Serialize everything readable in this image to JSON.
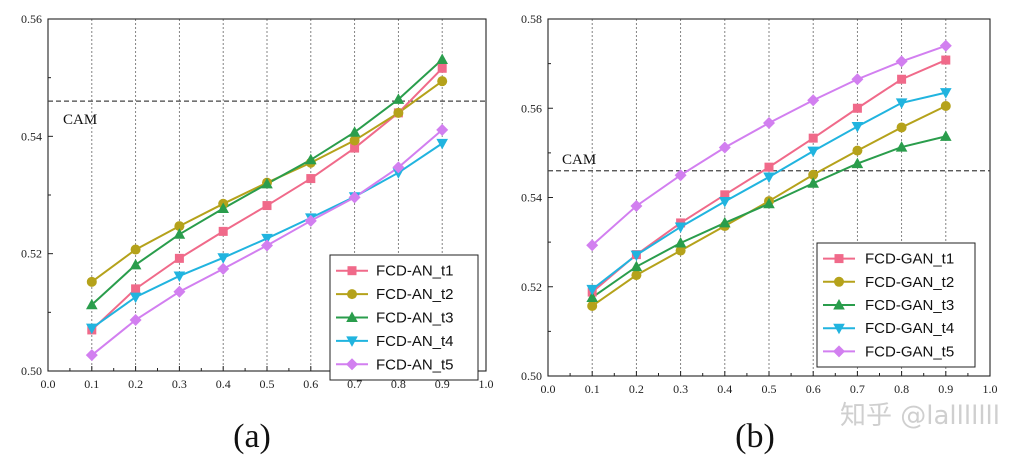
{
  "chart_data": [
    {
      "type": "line",
      "caption": "(a)",
      "x": [
        0.1,
        0.2,
        0.3,
        0.4,
        0.5,
        0.6,
        0.7,
        0.8,
        0.9
      ],
      "xlim": [
        0.0,
        1.0
      ],
      "xticks": [
        "0.0",
        "0.1",
        "0.2",
        "0.3",
        "0.4",
        "0.5",
        "0.6",
        "0.7",
        "0.8",
        "0.9",
        "1.0"
      ],
      "ylim": [
        0.5,
        0.56
      ],
      "yticks": [
        "0.50",
        "0.52",
        "0.54",
        "0.56"
      ],
      "grid": "vertical dotted",
      "reference_line": {
        "label": "CAM",
        "value": 0.546
      },
      "legend_position": "bottom-right",
      "series": [
        {
          "name": "FCD-AN_t1",
          "color": "#f06a8a",
          "marker": "square",
          "values": [
            0.507,
            0.514,
            0.5192,
            0.5238,
            0.5282,
            0.5328,
            0.538,
            0.544,
            0.5516
          ]
        },
        {
          "name": "FCD-AN_t2",
          "color": "#b5a21b",
          "marker": "circle",
          "values": [
            0.5152,
            0.5207,
            0.5247,
            0.5285,
            0.5321,
            0.5355,
            0.5393,
            0.544,
            0.5494
          ]
        },
        {
          "name": "FCD-AN_t3",
          "color": "#2a9d4c",
          "marker": "triangle-up",
          "values": [
            0.5113,
            0.5181,
            0.5233,
            0.5277,
            0.5319,
            0.536,
            0.5407,
            0.5463,
            0.5531
          ]
        },
        {
          "name": "FCD-AN_t4",
          "color": "#21b4df",
          "marker": "triangle-down",
          "values": [
            0.5073,
            0.5126,
            0.5162,
            0.5193,
            0.5226,
            0.5261,
            0.5297,
            0.5338,
            0.5388
          ]
        },
        {
          "name": "FCD-AN_t5",
          "color": "#d27ff0",
          "marker": "diamond",
          "values": [
            0.5027,
            0.5087,
            0.5135,
            0.5174,
            0.5214,
            0.5256,
            0.5296,
            0.5347,
            0.5411
          ]
        }
      ]
    },
    {
      "type": "line",
      "caption": "(b)",
      "x": [
        0.1,
        0.2,
        0.3,
        0.4,
        0.5,
        0.6,
        0.7,
        0.8,
        0.9
      ],
      "xlim": [
        0.0,
        1.0
      ],
      "xticks": [
        "0.0",
        "0.1",
        "0.2",
        "0.3",
        "0.4",
        "0.5",
        "0.6",
        "0.7",
        "0.8",
        "0.9",
        "1.0"
      ],
      "ylim": [
        0.5,
        0.58
      ],
      "yticks": [
        "0.50",
        "0.52",
        "0.54",
        "0.56",
        "0.58"
      ],
      "grid": "vertical dotted",
      "reference_line": {
        "label": "CAM",
        "value": 0.546
      },
      "legend_position": "bottom-right",
      "series": [
        {
          "name": "FCD-GAN_t1",
          "color": "#f06a8a",
          "marker": "square",
          "values": [
            0.5188,
            0.5272,
            0.5343,
            0.5406,
            0.5468,
            0.5533,
            0.56,
            0.5665,
            0.5708
          ]
        },
        {
          "name": "FCD-GAN_t2",
          "color": "#b5a21b",
          "marker": "circle",
          "values": [
            0.5157,
            0.5226,
            0.5281,
            0.5336,
            0.5392,
            0.5451,
            0.5505,
            0.5557,
            0.5605
          ]
        },
        {
          "name": "FCD-GAN_t3",
          "color": "#2a9d4c",
          "marker": "triangle-up",
          "values": [
            0.5176,
            0.5245,
            0.5298,
            0.5343,
            0.5386,
            0.5432,
            0.5476,
            0.5513,
            0.5537
          ]
        },
        {
          "name": "FCD-GAN_t4",
          "color": "#21b4df",
          "marker": "triangle-down",
          "values": [
            0.5194,
            0.5271,
            0.5334,
            0.5391,
            0.5446,
            0.5504,
            0.5559,
            0.5612,
            0.5635
          ]
        },
        {
          "name": "FCD-GAN_t5",
          "color": "#d27ff0",
          "marker": "diamond",
          "values": [
            0.5293,
            0.5381,
            0.545,
            0.5512,
            0.5567,
            0.5618,
            0.5665,
            0.5705,
            0.574
          ]
        }
      ]
    }
  ],
  "watermark": "知乎 @lalllllll"
}
